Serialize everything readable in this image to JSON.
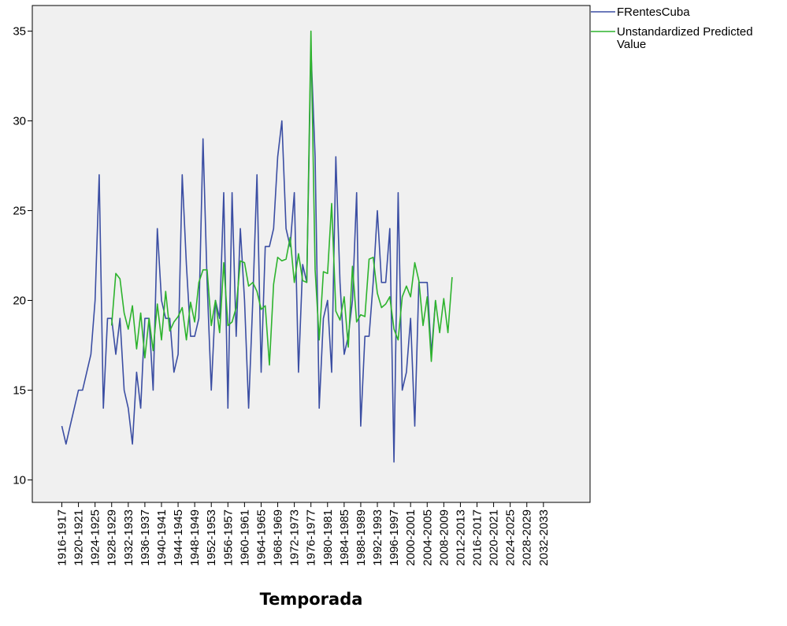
{
  "chart_data": {
    "type": "line",
    "xlabel": "Temporada",
    "ylabel": "",
    "ylim": [
      9,
      37
    ],
    "yticks": [
      10,
      15,
      20,
      25,
      30,
      35
    ],
    "grid": false,
    "legend_position": "top-right",
    "x_tick_labels": [
      "1916-1917",
      "1920-1921",
      "1924-1925",
      "1928-1929",
      "1932-1933",
      "1936-1937",
      "1940-1941",
      "1944-1945",
      "1948-1949",
      "1952-1953",
      "1956-1957",
      "1960-1961",
      "1964-1965",
      "1968-1969",
      "1972-1973",
      "1976-1977",
      "1980-1981",
      "1984-1985",
      "1988-1989",
      "1992-1993",
      "1996-1997",
      "2000-2001",
      "2004-2005",
      "2008-2009",
      "2012-2013",
      "2016-2017",
      "2020-2021",
      "2024-2025",
      "2028-2029",
      "2032-2033"
    ],
    "series": [
      {
        "name": "FRentesCuba",
        "color": "#3b4ea3",
        "start_year": 1916,
        "values": [
          13,
          12,
          13,
          14,
          15,
          15,
          16,
          17,
          20,
          27,
          14,
          19,
          19,
          17,
          19,
          15,
          14,
          12,
          16,
          14,
          19,
          19,
          15,
          24,
          20,
          19,
          19,
          16,
          17,
          27,
          22,
          18,
          18,
          19,
          29,
          21,
          15,
          20,
          19,
          26,
          14,
          26,
          18,
          24,
          20,
          14,
          20,
          27,
          16,
          23,
          23,
          24,
          28,
          30,
          24,
          23,
          26,
          16,
          22,
          21,
          34,
          28,
          14,
          19,
          20,
          16,
          28,
          21,
          17,
          18,
          20,
          26,
          13,
          18,
          18,
          21,
          25,
          21,
          21,
          24,
          11,
          26,
          15,
          16,
          19,
          13,
          21,
          21,
          21,
          17,
          20
        ]
      },
      {
        "name": "Unstandardized Predicted Value",
        "color": "#2db32d",
        "start_year": 1928,
        "values": [
          18.6,
          21.5,
          21.2,
          19.3,
          18.4,
          19.7,
          17.3,
          19.3,
          16.8,
          19.0,
          17.2,
          19.8,
          17.8,
          20.5,
          18.3,
          18.8,
          19.1,
          19.6,
          17.8,
          19.9,
          18.8,
          21.0,
          21.7,
          21.7,
          18.6,
          20.0,
          18.2,
          22.1,
          18.6,
          18.8,
          19.6,
          22.2,
          22.1,
          20.8,
          21.0,
          20.5,
          19.5,
          19.7,
          16.4,
          20.9,
          22.4,
          22.2,
          22.3,
          23.5,
          21.0,
          22.6,
          21.1,
          21.0,
          35.0,
          21.7,
          17.8,
          21.6,
          21.5,
          25.4,
          19.4,
          18.9,
          20.2,
          17.4,
          21.9,
          18.8,
          19.2,
          19.1,
          22.3,
          22.4,
          20.4,
          19.6,
          19.8,
          20.2,
          18.4,
          17.8,
          20.2,
          20.8,
          20.2,
          22.1,
          21.1,
          18.6,
          20.2,
          16.6,
          20.0,
          18.2,
          20.1,
          18.2,
          21.3
        ]
      }
    ]
  }
}
